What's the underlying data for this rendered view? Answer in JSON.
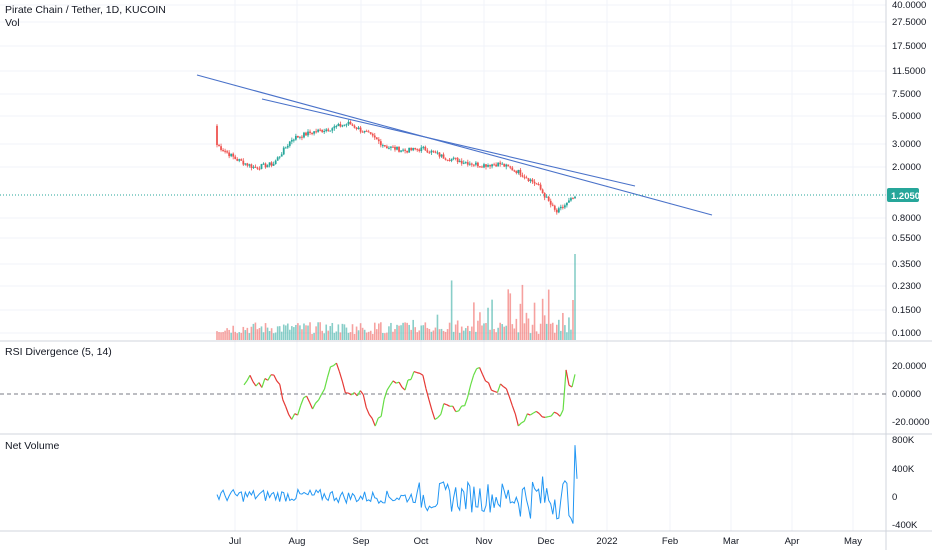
{
  "header": {
    "symbol_title": "Pirate Chain / Tether, 1D, KUCOIN",
    "vol_label": "Vol"
  },
  "price_pane": {
    "last_price": "1.2050",
    "last_price_color": "#26a69a",
    "trendline_color": "#4a72c9",
    "up_color": "#26a69a",
    "down_color": "#ef5350"
  },
  "indicators": {
    "rsi_label": "RSI Divergence (5, 14)",
    "netvol_label": "Net Volume",
    "rsi_up_color": "#66dd44",
    "rsi_down_color": "#e53935",
    "netvol_color": "#2196f3"
  },
  "chart_data": [
    {
      "type": "candlestick",
      "title": "Pirate Chain / Tether, 1D, KUCOIN",
      "scale": "log",
      "y_ticks": [
        "40.0000",
        "27.5000",
        "17.5000",
        "11.5000",
        "7.5000",
        "5.0000",
        "3.0000",
        "2.0000",
        "0.8000",
        "0.5500",
        "0.3500",
        "0.2300",
        "0.1500",
        "0.1000"
      ],
      "x_ticks": [
        "Jul",
        "Aug",
        "Sep",
        "Oct",
        "Nov",
        "Dec",
        "2022",
        "Feb",
        "Mar",
        "Apr",
        "May"
      ],
      "last_value": 1.205,
      "approx_closes": [
        {
          "date": "2021-06-21",
          "close": 3.1
        },
        {
          "date": "2021-07-01",
          "close": 2.4
        },
        {
          "date": "2021-07-10",
          "close": 2.05
        },
        {
          "date": "2021-07-20",
          "close": 2.2
        },
        {
          "date": "2021-07-28",
          "close": 3.5
        },
        {
          "date": "2021-08-05",
          "close": 3.9
        },
        {
          "date": "2021-08-15",
          "close": 4.2
        },
        {
          "date": "2021-08-25",
          "close": 4.6
        },
        {
          "date": "2021-09-05",
          "close": 3.8
        },
        {
          "date": "2021-09-15",
          "close": 3.0
        },
        {
          "date": "2021-09-25",
          "close": 2.8
        },
        {
          "date": "2021-10-05",
          "close": 2.9
        },
        {
          "date": "2021-10-15",
          "close": 2.5
        },
        {
          "date": "2021-10-25",
          "close": 2.3
        },
        {
          "date": "2021-11-05",
          "close": 2.15
        },
        {
          "date": "2021-11-15",
          "close": 2.2
        },
        {
          "date": "2021-11-25",
          "close": 1.9
        },
        {
          "date": "2021-12-05",
          "close": 1.5
        },
        {
          "date": "2021-12-12",
          "close": 0.9
        },
        {
          "date": "2021-12-15",
          "close": 1.205
        }
      ]
    },
    {
      "type": "line",
      "title": "RSI Divergence (5, 14)",
      "y_ticks": [
        "20.0000",
        "0.0000",
        "-20.0000"
      ],
      "range": [
        -26,
        33
      ]
    },
    {
      "type": "line",
      "title": "Net Volume",
      "y_ticks": [
        "800K",
        "400K",
        "0",
        "-400K"
      ],
      "range": [
        -420000,
        760000
      ]
    }
  ]
}
